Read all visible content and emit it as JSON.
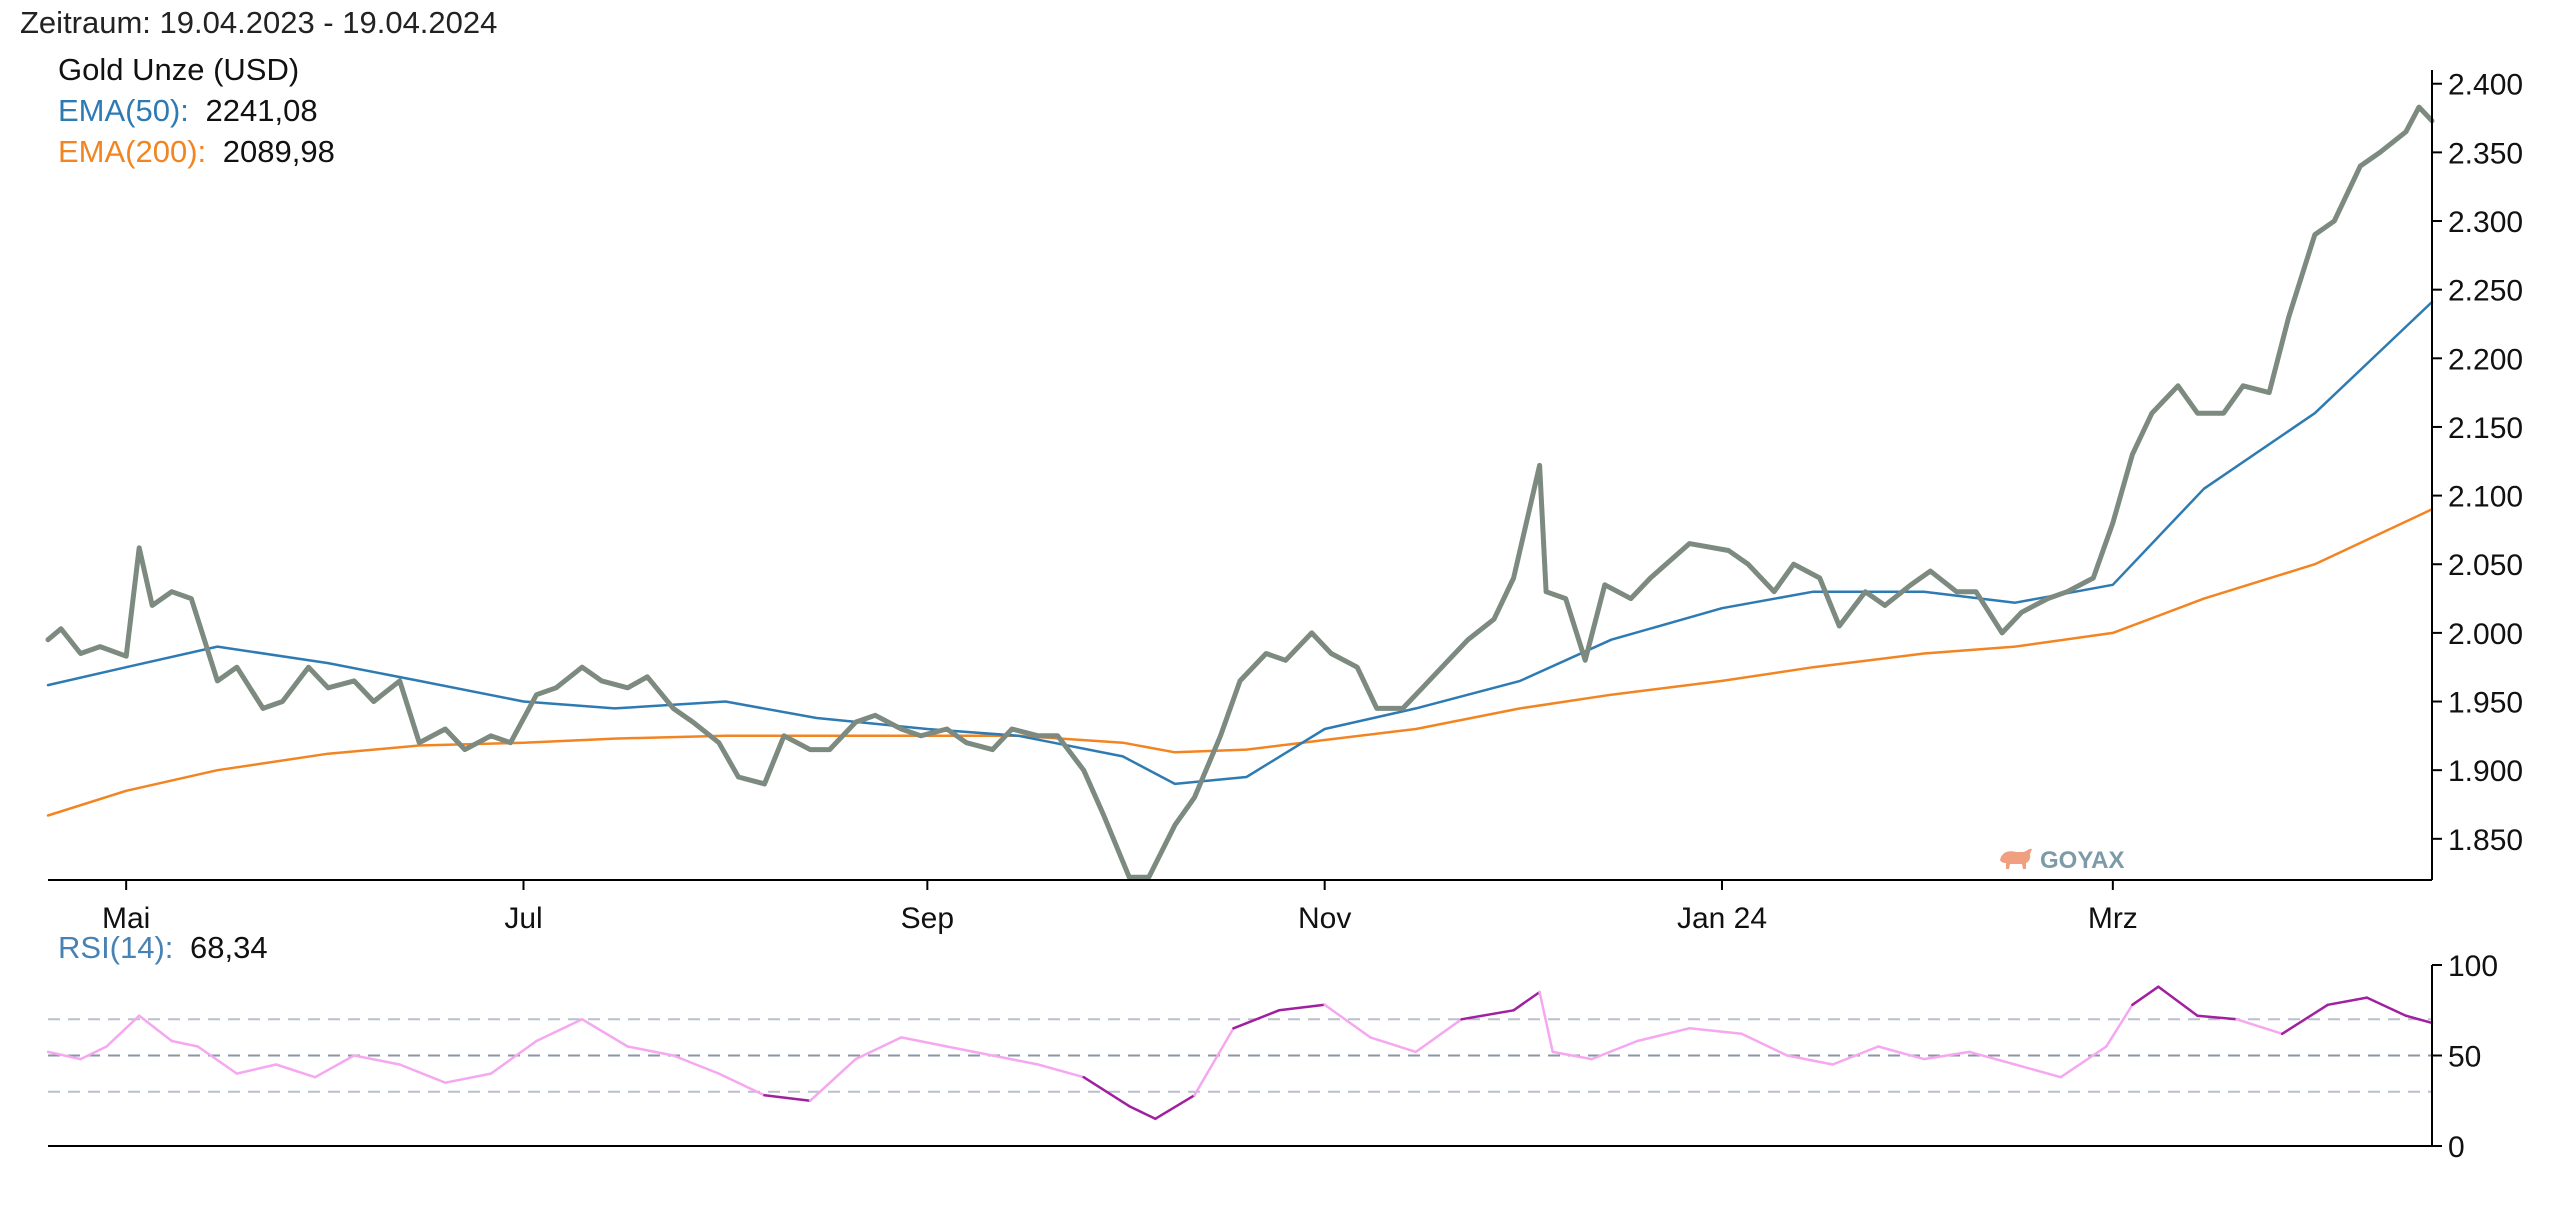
{
  "header": {
    "period_label": "Zeitraum: 19.04.2023 - 19.04.2024"
  },
  "legend": {
    "instrument": "Gold Unze (USD)",
    "ema50_label": "EMA(50):",
    "ema50_value": "2241,08",
    "ema200_label": "EMA(200):",
    "ema200_value": "2089,98",
    "rsi_label": "RSI(14):",
    "rsi_value": "68,34"
  },
  "watermark": {
    "text": "GOYAX"
  },
  "colors": {
    "price": "#7d8a80",
    "ema50": "#2e7bb4",
    "ema200": "#f28522",
    "rsi_high": "#a020a0",
    "rsi_mid": "#f5a8f0",
    "ema50_label": "#2e7bb4",
    "ema200_label": "#f28522",
    "rsi_label": "#4682b4",
    "watermark": "#7d9aa8"
  },
  "chart_data": [
    {
      "type": "line",
      "x_range": [
        "2023-04-19",
        "2024-04-19"
      ],
      "ylim": [
        1820,
        2410
      ],
      "x_ticks": [
        {
          "label": "Mai",
          "date": "2023-05-01"
        },
        {
          "label": "Jul",
          "date": "2023-07-01"
        },
        {
          "label": "Sep",
          "date": "2023-09-01"
        },
        {
          "label": "Nov",
          "date": "2023-11-01"
        },
        {
          "label": "Jan 24",
          "date": "2024-01-01"
        },
        {
          "label": "Mrz",
          "date": "2024-03-01"
        }
      ],
      "y_ticks": [
        {
          "label": "1.850",
          "value": 1850
        },
        {
          "label": "1.900",
          "value": 1900
        },
        {
          "label": "1.950",
          "value": 1950
        },
        {
          "label": "2.000",
          "value": 2000
        },
        {
          "label": "2.050",
          "value": 2050
        },
        {
          "label": "2.100",
          "value": 2100
        },
        {
          "label": "2.150",
          "value": 2150
        },
        {
          "label": "2.200",
          "value": 2200
        },
        {
          "label": "2.250",
          "value": 2250
        },
        {
          "label": "2.300",
          "value": 2300
        },
        {
          "label": "2.350",
          "value": 2350
        },
        {
          "label": "2.400",
          "value": 2400
        }
      ],
      "series": [
        {
          "name": "Gold Unze (USD)",
          "x": [
            "2023-04-19",
            "2023-04-21",
            "2023-04-24",
            "2023-04-27",
            "2023-05-01",
            "2023-05-03",
            "2023-05-05",
            "2023-05-08",
            "2023-05-11",
            "2023-05-15",
            "2023-05-18",
            "2023-05-22",
            "2023-05-25",
            "2023-05-29",
            "2023-06-01",
            "2023-06-05",
            "2023-06-08",
            "2023-06-12",
            "2023-06-15",
            "2023-06-19",
            "2023-06-22",
            "2023-06-26",
            "2023-06-29",
            "2023-07-03",
            "2023-07-06",
            "2023-07-10",
            "2023-07-13",
            "2023-07-17",
            "2023-07-20",
            "2023-07-24",
            "2023-07-27",
            "2023-07-31",
            "2023-08-03",
            "2023-08-07",
            "2023-08-10",
            "2023-08-14",
            "2023-08-17",
            "2023-08-21",
            "2023-08-24",
            "2023-08-28",
            "2023-08-31",
            "2023-09-04",
            "2023-09-07",
            "2023-09-11",
            "2023-09-14",
            "2023-09-18",
            "2023-09-21",
            "2023-09-25",
            "2023-09-28",
            "2023-10-02",
            "2023-10-05",
            "2023-10-09",
            "2023-10-12",
            "2023-10-16",
            "2023-10-19",
            "2023-10-23",
            "2023-10-26",
            "2023-10-30",
            "2023-11-02",
            "2023-11-06",
            "2023-11-09",
            "2023-11-13",
            "2023-11-16",
            "2023-11-20",
            "2023-11-23",
            "2023-11-27",
            "2023-11-30",
            "2023-12-04",
            "2023-12-05",
            "2023-12-08",
            "2023-12-11",
            "2023-12-14",
            "2023-12-18",
            "2023-12-21",
            "2023-12-27",
            "2024-01-02",
            "2024-01-05",
            "2024-01-09",
            "2024-01-12",
            "2024-01-16",
            "2024-01-19",
            "2024-01-23",
            "2024-01-26",
            "2024-01-30",
            "2024-02-02",
            "2024-02-06",
            "2024-02-09",
            "2024-02-13",
            "2024-02-16",
            "2024-02-20",
            "2024-02-23",
            "2024-02-27",
            "2024-03-01",
            "2024-03-04",
            "2024-03-07",
            "2024-03-11",
            "2024-03-14",
            "2024-03-18",
            "2024-03-21",
            "2024-03-25",
            "2024-03-28",
            "2024-04-01",
            "2024-04-04",
            "2024-04-08",
            "2024-04-11",
            "2024-04-15",
            "2024-04-17",
            "2024-04-19"
          ],
          "values": [
            1995,
            2003,
            1985,
            1990,
            1983,
            2062,
            2020,
            2030,
            2025,
            1965,
            1975,
            1945,
            1950,
            1975,
            1960,
            1965,
            1950,
            1965,
            1920,
            1930,
            1915,
            1925,
            1920,
            1955,
            1960,
            1975,
            1965,
            1960,
            1968,
            1945,
            1935,
            1920,
            1895,
            1890,
            1925,
            1915,
            1915,
            1935,
            1940,
            1930,
            1925,
            1930,
            1920,
            1915,
            1930,
            1925,
            1925,
            1900,
            1868,
            1822,
            1822,
            1860,
            1880,
            1925,
            1965,
            1985,
            1980,
            2000,
            1985,
            1975,
            1945,
            1945,
            1960,
            1980,
            1995,
            2010,
            2040,
            2122,
            2030,
            2025,
            1980,
            2035,
            2025,
            2040,
            2065,
            2060,
            2050,
            2030,
            2050,
            2040,
            2005,
            2030,
            2020,
            2035,
            2045,
            2030,
            2030,
            2000,
            2015,
            2025,
            2030,
            2040,
            2080,
            2130,
            2160,
            2180,
            2160,
            2160,
            2180,
            2175,
            2230,
            2290,
            2300,
            2340,
            2350,
            2365,
            2383,
            2373
          ]
        },
        {
          "name": "EMA(50)",
          "x": [
            "2023-04-19",
            "2023-05-01",
            "2023-05-15",
            "2023-06-01",
            "2023-06-15",
            "2023-07-01",
            "2023-07-15",
            "2023-08-01",
            "2023-08-15",
            "2023-09-01",
            "2023-09-15",
            "2023-10-01",
            "2023-10-09",
            "2023-10-20",
            "2023-11-01",
            "2023-11-15",
            "2023-12-01",
            "2023-12-15",
            "2024-01-01",
            "2024-01-15",
            "2024-02-01",
            "2024-02-15",
            "2024-03-01",
            "2024-03-15",
            "2024-04-01",
            "2024-04-19"
          ],
          "values": [
            1962,
            1975,
            1990,
            1978,
            1965,
            1950,
            1945,
            1950,
            1938,
            1930,
            1925,
            1910,
            1890,
            1895,
            1930,
            1945,
            1965,
            1995,
            2018,
            2030,
            2030,
            2022,
            2035,
            2105,
            2160,
            2241
          ]
        },
        {
          "name": "EMA(200)",
          "x": [
            "2023-04-19",
            "2023-05-01",
            "2023-05-15",
            "2023-06-01",
            "2023-06-15",
            "2023-07-01",
            "2023-07-15",
            "2023-08-01",
            "2023-08-15",
            "2023-09-01",
            "2023-09-15",
            "2023-10-01",
            "2023-10-09",
            "2023-10-20",
            "2023-11-01",
            "2023-11-15",
            "2023-12-01",
            "2023-12-15",
            "2024-01-01",
            "2024-01-15",
            "2024-02-01",
            "2024-02-15",
            "2024-03-01",
            "2024-03-15",
            "2024-04-01",
            "2024-04-19"
          ],
          "values": [
            1867,
            1885,
            1900,
            1912,
            1918,
            1920,
            1923,
            1925,
            1925,
            1925,
            1925,
            1920,
            1913,
            1915,
            1922,
            1930,
            1945,
            1955,
            1965,
            1975,
            1985,
            1990,
            2000,
            2025,
            2050,
            2090
          ]
        }
      ]
    },
    {
      "type": "line",
      "x_range": [
        "2023-04-19",
        "2024-04-19"
      ],
      "ylim": [
        0,
        100
      ],
      "y_ticks": [
        {
          "label": "0",
          "value": 0
        },
        {
          "label": "50",
          "value": 50
        },
        {
          "label": "100",
          "value": 100
        }
      ],
      "reference_lines": [
        30,
        50,
        70
      ],
      "series": [
        {
          "name": "RSI(14)",
          "x": [
            "2023-04-19",
            "2023-04-24",
            "2023-04-28",
            "2023-05-03",
            "2023-05-08",
            "2023-05-12",
            "2023-05-18",
            "2023-05-24",
            "2023-05-30",
            "2023-06-05",
            "2023-06-12",
            "2023-06-19",
            "2023-06-26",
            "2023-07-03",
            "2023-07-10",
            "2023-07-17",
            "2023-07-24",
            "2023-07-31",
            "2023-08-07",
            "2023-08-14",
            "2023-08-21",
            "2023-08-28",
            "2023-09-04",
            "2023-09-11",
            "2023-09-18",
            "2023-09-25",
            "2023-10-02",
            "2023-10-06",
            "2023-10-12",
            "2023-10-18",
            "2023-10-25",
            "2023-11-01",
            "2023-11-08",
            "2023-11-15",
            "2023-11-22",
            "2023-11-30",
            "2023-12-04",
            "2023-12-06",
            "2023-12-12",
            "2023-12-19",
            "2023-12-27",
            "2024-01-04",
            "2024-01-11",
            "2024-01-18",
            "2024-01-25",
            "2024-02-01",
            "2024-02-08",
            "2024-02-15",
            "2024-02-22",
            "2024-02-29",
            "2024-03-04",
            "2024-03-08",
            "2024-03-14",
            "2024-03-20",
            "2024-03-27",
            "2024-04-03",
            "2024-04-09",
            "2024-04-15",
            "2024-04-19"
          ],
          "values": [
            52,
            48,
            55,
            72,
            58,
            55,
            40,
            45,
            38,
            50,
            45,
            35,
            40,
            58,
            70,
            55,
            50,
            40,
            28,
            25,
            48,
            60,
            55,
            50,
            45,
            38,
            22,
            15,
            28,
            65,
            75,
            78,
            60,
            52,
            70,
            75,
            85,
            52,
            48,
            58,
            65,
            62,
            50,
            45,
            55,
            48,
            52,
            45,
            38,
            55,
            78,
            88,
            72,
            70,
            62,
            78,
            82,
            72,
            68
          ]
        }
      ]
    }
  ]
}
